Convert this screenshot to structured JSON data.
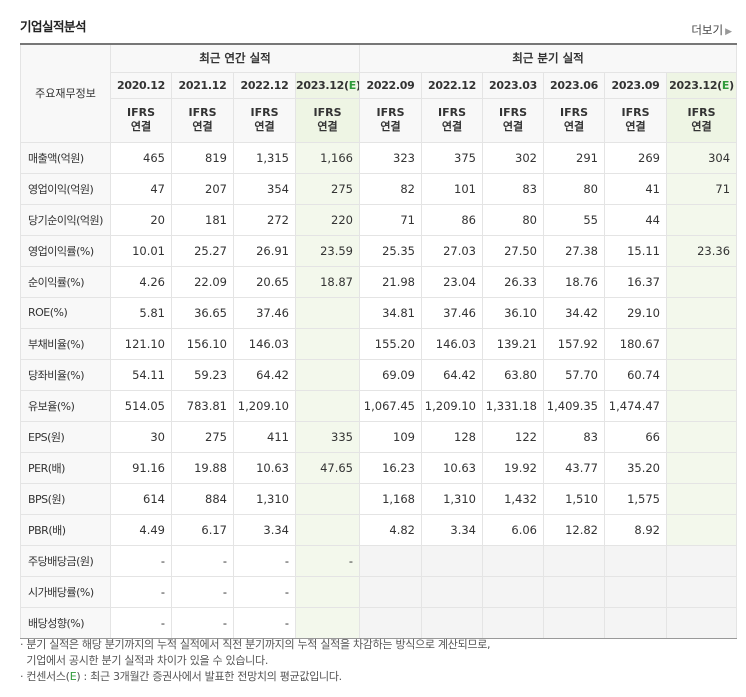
{
  "title": "기업실적분석",
  "more": "더보기",
  "header": {
    "row_label": "주요재무정보",
    "annual_group": "최근 연간 실적",
    "quarterly_group": "최근 분기 실적",
    "periods": [
      "2020.12",
      "2021.12",
      "2022.12",
      "2023.12(E)",
      "2022.09",
      "2022.12",
      "2023.03",
      "2023.06",
      "2023.09",
      "2023.12(E)"
    ],
    "basis_top": "IFRS",
    "basis_bottom": "연결"
  },
  "rows": [
    {
      "label": "매출액(억원)",
      "values": [
        "465",
        "819",
        "1,315",
        "1,166",
        "323",
        "375",
        "302",
        "291",
        "269",
        "304"
      ]
    },
    {
      "label": "영업이익(억원)",
      "values": [
        "47",
        "207",
        "354",
        "275",
        "82",
        "101",
        "83",
        "80",
        "41",
        "71"
      ]
    },
    {
      "label": "당기순이익(억원)",
      "values": [
        "20",
        "181",
        "272",
        "220",
        "71",
        "86",
        "80",
        "55",
        "44",
        ""
      ]
    },
    {
      "label": "영업이익률(%)",
      "values": [
        "10.01",
        "25.27",
        "26.91",
        "23.59",
        "25.35",
        "27.03",
        "27.50",
        "27.38",
        "15.11",
        "23.36"
      ]
    },
    {
      "label": "순이익률(%)",
      "values": [
        "4.26",
        "22.09",
        "20.65",
        "18.87",
        "21.98",
        "23.04",
        "26.33",
        "18.76",
        "16.37",
        ""
      ]
    },
    {
      "label": "ROE(%)",
      "values": [
        "5.81",
        "36.65",
        "37.46",
        "",
        "34.81",
        "37.46",
        "36.10",
        "34.42",
        "29.10",
        ""
      ]
    },
    {
      "label": "부채비율(%)",
      "values": [
        "121.10",
        "156.10",
        "146.03",
        "",
        "155.20",
        "146.03",
        "139.21",
        "157.92",
        "180.67",
        ""
      ]
    },
    {
      "label": "당좌비율(%)",
      "values": [
        "54.11",
        "59.23",
        "64.42",
        "",
        "69.09",
        "64.42",
        "63.80",
        "57.70",
        "60.74",
        ""
      ]
    },
    {
      "label": "유보율(%)",
      "values": [
        "514.05",
        "783.81",
        "1,209.10",
        "",
        "1,067.45",
        "1,209.10",
        "1,331.18",
        "1,409.35",
        "1,474.47",
        ""
      ]
    },
    {
      "label": "EPS(원)",
      "values": [
        "30",
        "275",
        "411",
        "335",
        "109",
        "128",
        "122",
        "83",
        "66",
        ""
      ]
    },
    {
      "label": "PER(배)",
      "values": [
        "91.16",
        "19.88",
        "10.63",
        "47.65",
        "16.23",
        "10.63",
        "19.92",
        "43.77",
        "35.20",
        ""
      ]
    },
    {
      "label": "BPS(원)",
      "values": [
        "614",
        "884",
        "1,310",
        "",
        "1,168",
        "1,310",
        "1,432",
        "1,510",
        "1,575",
        ""
      ]
    },
    {
      "label": "PBR(배)",
      "values": [
        "4.49",
        "6.17",
        "3.34",
        "",
        "4.82",
        "3.34",
        "6.06",
        "12.82",
        "8.92",
        ""
      ]
    },
    {
      "label": "주당배당금(원)",
      "values": [
        "-",
        "-",
        "-",
        "-",
        "",
        "",
        "",
        "",
        "",
        ""
      ]
    },
    {
      "label": "시가배당률(%)",
      "values": [
        "-",
        "-",
        "-",
        "",
        "",
        "",
        "",
        "",
        "",
        ""
      ]
    },
    {
      "label": "배당성향(%)",
      "values": [
        "-",
        "-",
        "-",
        "",
        "",
        "",
        "",
        "",
        "",
        ""
      ]
    }
  ],
  "notes": {
    "line1": "분기 실적은 해당 분기까지의 누적 실적에서 직전 분기까지의 누적 실적을 차감하는 방식으로 계산되므로,",
    "line2": "기업에서 공시한 분기 실적과 차이가 있을 수 있습니다.",
    "line3_prefix": "컨센서스(",
    "line3_e": "E",
    "line3_suffix": ") : 최근 3개월간 증권사에서 발표한 전망치의 평균값입니다."
  },
  "colors": {
    "ifrs": "#e56a0c",
    "estimate_bg": "#f3f8ec",
    "estimate_mark": "#2f9a3a"
  }
}
